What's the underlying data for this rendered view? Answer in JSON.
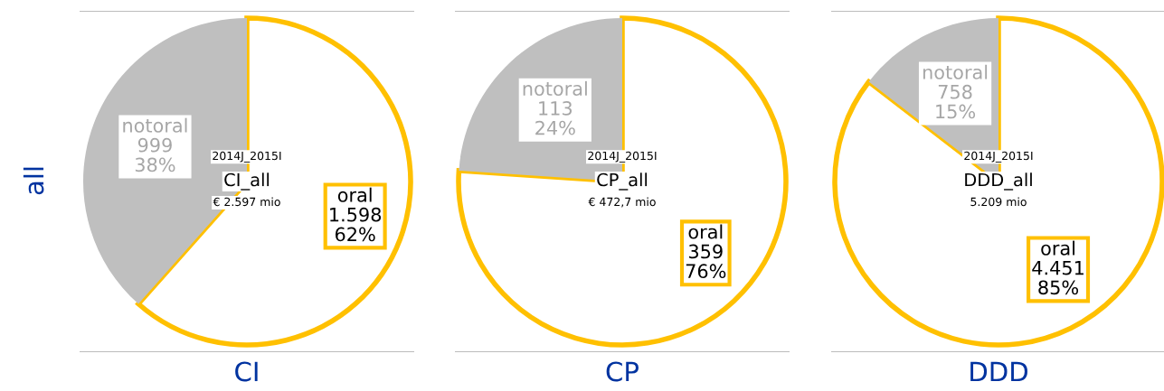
{
  "chart_data": [
    {
      "type": "pie",
      "xlabel": "CI",
      "ylabel": "all",
      "categories": [
        "oral",
        "notoral"
      ],
      "values": [
        1598,
        999
      ],
      "value_labels": [
        "1.598\n62%",
        "999\n38%"
      ],
      "colors": [
        "#ffffff",
        "#bfbfbf"
      ],
      "annotations": [
        "2014J_2015I",
        "CI_all",
        "€ 2.597 mio"
      ]
    },
    {
      "type": "pie",
      "xlabel": "CP",
      "categories": [
        "oral",
        "notoral"
      ],
      "values": [
        359,
        113
      ],
      "value_labels": [
        "359\n76%",
        "113\n24%"
      ],
      "colors": [
        "#ffffff",
        "#bfbfbf"
      ],
      "annotations": [
        "2014J_2015I",
        "CP_all",
        "€ 472,7 mio"
      ]
    },
    {
      "type": "pie",
      "xlabel": "DDD",
      "categories": [
        "oral",
        "notoral"
      ],
      "values": [
        4451,
        758
      ],
      "value_labels": [
        "4.451\n85%",
        "758\n15%"
      ],
      "colors": [
        "#ffffff",
        "#bfbfbf"
      ],
      "annotations": [
        "2014J_2015I",
        "DDD_all",
        "5.209 mio"
      ]
    }
  ]
}
